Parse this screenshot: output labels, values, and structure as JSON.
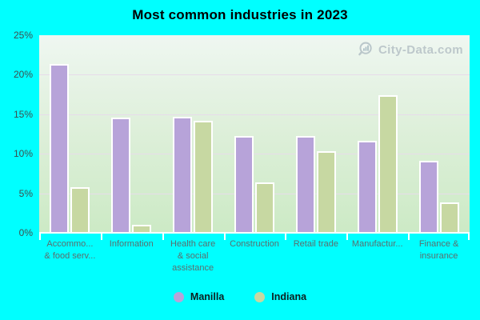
{
  "watermark": "City-Data.com",
  "chart_data": {
    "type": "bar",
    "title": "Most common industries in 2023",
    "categories": [
      "Accommo...\n& food serv...",
      "Information",
      "Health care\n& social\nassistance",
      "Construction",
      "Retail trade",
      "Manufactur...",
      "Finance &\ninsurance"
    ],
    "series": [
      {
        "name": "Manilla",
        "color": "#b7a3d9",
        "values": [
          21.4,
          14.6,
          14.7,
          12.2,
          12.2,
          11.6,
          9.1
        ]
      },
      {
        "name": "Indiana",
        "color": "#c7d8a2",
        "values": [
          5.8,
          1.0,
          14.2,
          6.4,
          10.3,
          17.4,
          3.8
        ]
      }
    ],
    "ylim": [
      0,
      25
    ],
    "yticks": [
      {
        "label": "0%",
        "value": 0
      },
      {
        "label": "5%",
        "value": 5
      },
      {
        "label": "10%",
        "value": 10
      },
      {
        "label": "15%",
        "value": 15
      },
      {
        "label": "20%",
        "value": 20
      },
      {
        "label": "25%",
        "value": 25
      }
    ],
    "grid": true,
    "legend_position": "bottom",
    "background_color": "#00ffff"
  }
}
